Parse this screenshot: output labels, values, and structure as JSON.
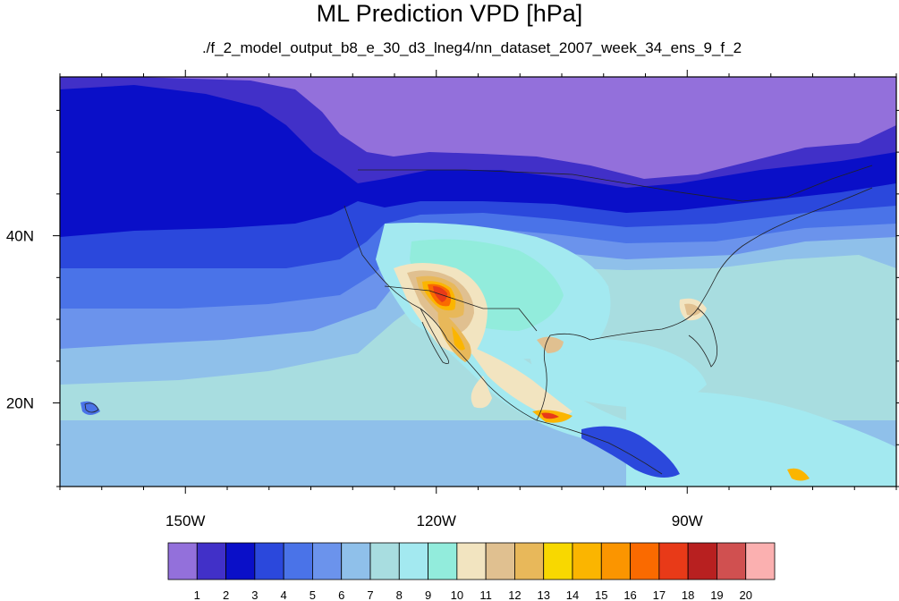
{
  "title": "ML Prediction VPD [hPa]",
  "subtitle": "./f_2_model_output_b8_e_30_d3_lneg4/nn_dataset_2007_week_34_ens_9_f_2",
  "map": {
    "lon_range": [
      -165,
      -65
    ],
    "lat_range": [
      10,
      59
    ],
    "lon_ticks": [
      {
        "value": -150,
        "label": "150W"
      },
      {
        "value": -120,
        "label": "120W"
      },
      {
        "value": -90,
        "label": "90W"
      }
    ],
    "lat_ticks": [
      {
        "value": 40,
        "label": "40N"
      },
      {
        "value": 20,
        "label": "20N"
      }
    ]
  },
  "colorbar": {
    "labels": [
      "1",
      "2",
      "3",
      "4",
      "5",
      "6",
      "7",
      "8",
      "9",
      "10",
      "11",
      "12",
      "13",
      "14",
      "15",
      "16",
      "17",
      "18",
      "19",
      "20"
    ],
    "colors": [
      "#9370db",
      "#4130c8",
      "#0a0fc8",
      "#2b48dc",
      "#4a73e8",
      "#6b93ec",
      "#8fc0ea",
      "#a8dde0",
      "#a3e9f0",
      "#92ecdc",
      "#f2e4c0",
      "#e0c090",
      "#e8b85a",
      "#f8d800",
      "#fbb500",
      "#fb9500",
      "#fa6a00",
      "#e83a18",
      "#b82020",
      "#d05050",
      "#fbb0b0"
    ]
  }
}
